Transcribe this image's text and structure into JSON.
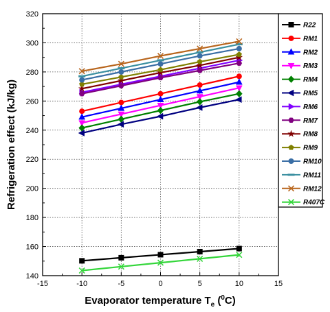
{
  "chart_data": {
    "type": "line",
    "title": "",
    "xlabel": "Evaporator temperature T",
    "xlabel_sub": "e",
    "xlabel_paren_open": " (",
    "xlabel_sup": "0",
    "xlabel_unit": "C)",
    "ylabel": "Refrigeration effect (kJ/kg)",
    "xlim": [
      -15,
      15
    ],
    "ylim": [
      140,
      320
    ],
    "xticks": [
      -15,
      -10,
      -5,
      0,
      5,
      10,
      15
    ],
    "yticks": [
      140,
      160,
      180,
      200,
      220,
      240,
      260,
      280,
      300,
      320
    ],
    "grid": "dotted",
    "legend_position": "right",
    "x": [
      -10,
      -5,
      0,
      5,
      10
    ],
    "series": [
      {
        "name": "R22",
        "color": "#000000",
        "marker": "square",
        "values": [
          150.2,
          152.3,
          154.4,
          156.5,
          158.6
        ]
      },
      {
        "name": "RM1",
        "color": "#ff0000",
        "marker": "circle",
        "values": [
          253.0,
          259.0,
          265.0,
          271.0,
          277.0
        ]
      },
      {
        "name": "RM2",
        "color": "#0000ff",
        "marker": "triangle-up",
        "values": [
          249.0,
          255.0,
          261.0,
          267.0,
          273.0
        ]
      },
      {
        "name": "RM3",
        "color": "#ff00ff",
        "marker": "triangle-down",
        "values": [
          245.0,
          251.0,
          257.0,
          263.0,
          269.0
        ]
      },
      {
        "name": "RM4",
        "color": "#008000",
        "marker": "diamond",
        "values": [
          241.5,
          247.5,
          253.5,
          259.5,
          265.0
        ]
      },
      {
        "name": "RM5",
        "color": "#000080",
        "marker": "triangle-left",
        "values": [
          238.0,
          244.0,
          249.5,
          255.5,
          261.0
        ]
      },
      {
        "name": "RM6",
        "color": "#8000ff",
        "marker": "triangle-right",
        "values": [
          266.0,
          271.5,
          277.0,
          282.5,
          288.0
        ]
      },
      {
        "name": "RM7",
        "color": "#800080",
        "marker": "hexagon",
        "values": [
          265.0,
          270.5,
          276.0,
          281.0,
          286.0
        ]
      },
      {
        "name": "RM8",
        "color": "#800000",
        "marker": "star",
        "values": [
          268.5,
          274.0,
          279.5,
          284.5,
          290.0
        ]
      },
      {
        "name": "RM9",
        "color": "#808000",
        "marker": "pentagon",
        "values": [
          271.5,
          276.5,
          281.5,
          287.0,
          292.0
        ]
      },
      {
        "name": "RM10",
        "color": "#3a6ea5",
        "marker": "circle",
        "values": [
          274.5,
          280.0,
          285.5,
          291.0,
          296.0
        ]
      },
      {
        "name": "RM11",
        "color": "#3a8fa0",
        "marker": "dash",
        "values": [
          277.0,
          282.5,
          288.0,
          293.5,
          299.0
        ]
      },
      {
        "name": "RM12",
        "color": "#b8651c",
        "marker": "x",
        "values": [
          280.5,
          285.5,
          291.0,
          296.0,
          301.0
        ]
      },
      {
        "name": "R407C",
        "color": "#33d63a",
        "marker": "x",
        "values": [
          143.5,
          146.2,
          148.9,
          151.6,
          154.3
        ]
      }
    ]
  }
}
